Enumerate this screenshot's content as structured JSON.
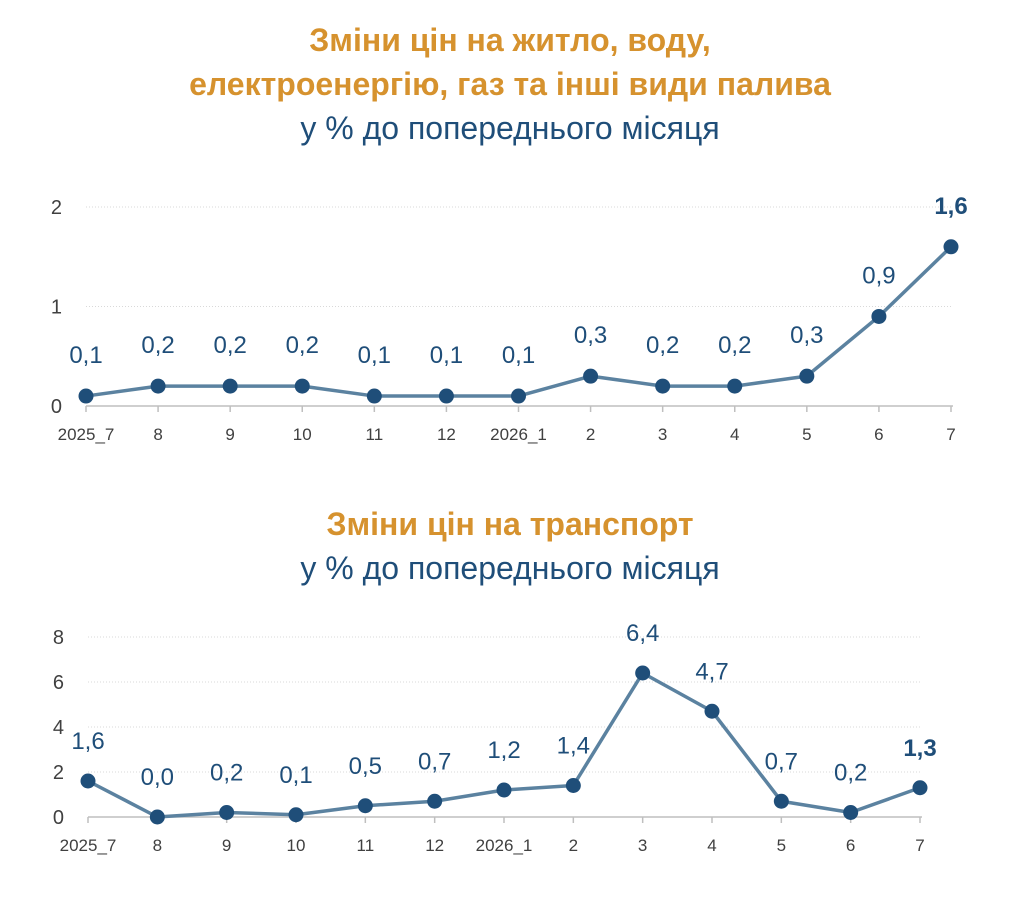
{
  "chart_data": [
    {
      "type": "line",
      "title_lines": [
        "Зміни цін на житло, воду,",
        "електроенергію, газ та інші види палива"
      ],
      "subtitle": "у % до попереднього місяця",
      "categories": [
        "2025_7",
        "8",
        "9",
        "10",
        "11",
        "12",
        "2026_1",
        "2",
        "3",
        "4",
        "5",
        "6",
        "7"
      ],
      "values": [
        0.1,
        0.2,
        0.2,
        0.2,
        0.1,
        0.1,
        0.1,
        0.3,
        0.2,
        0.2,
        0.3,
        0.9,
        1.6
      ],
      "value_labels": [
        "0,1",
        "0,2",
        "0,2",
        "0,2",
        "0,1",
        "0,1",
        "0,1",
        "0,3",
        "0,2",
        "0,2",
        "0,3",
        "0,9",
        "1,6"
      ],
      "yticks": [
        "0",
        "1",
        "2"
      ],
      "ylim": [
        0,
        2
      ],
      "grid": true,
      "line_color": "#5B82A0",
      "marker_color": "#1F4E79",
      "highlight_last": true
    },
    {
      "type": "line",
      "title_lines": [
        "Зміни цін на транспорт"
      ],
      "subtitle": "у % до попереднього місяця",
      "categories": [
        "2025_7",
        "8",
        "9",
        "10",
        "11",
        "12",
        "2026_1",
        "2",
        "3",
        "4",
        "5",
        "6",
        "7"
      ],
      "values": [
        1.6,
        0.0,
        0.2,
        0.1,
        0.5,
        0.7,
        1.2,
        1.4,
        6.4,
        4.7,
        0.7,
        0.2,
        1.3
      ],
      "value_labels": [
        "1,6",
        "0,0",
        "0,2",
        "0,1",
        "0,5",
        "0,7",
        "1,2",
        "1,4",
        "6,4",
        "4,7",
        "0,7",
        "0,2",
        "1,3"
      ],
      "yticks": [
        "0",
        "2",
        "4",
        "6",
        "8"
      ],
      "ylim": [
        0,
        8
      ],
      "grid": true,
      "line_color": "#5B82A0",
      "marker_color": "#1F4E79",
      "highlight_last": true
    }
  ]
}
